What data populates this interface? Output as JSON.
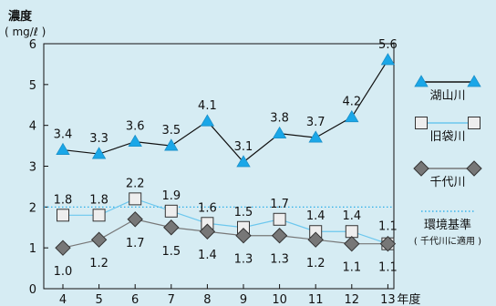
{
  "colors": {
    "background": "#d6ecf3",
    "axis": "#111111",
    "lake": "#1aa7e8",
    "lake_line": "#111111",
    "kyu": "#6cc7ee",
    "senda": "#777777",
    "standard": "#1aa7e8"
  },
  "chart_data": {
    "type": "line",
    "ylabel_line1": "濃度",
    "ylabel_line2": "( mg/ℓ )",
    "x_unit_label": "年度",
    "categories": [
      "4",
      "5",
      "6",
      "7",
      "8",
      "9",
      "10",
      "11",
      "12",
      "13"
    ],
    "ylim": [
      0,
      6
    ],
    "yticks": [
      "0",
      "1",
      "2",
      "3",
      "4",
      "5",
      "6"
    ],
    "grid": false,
    "series": [
      {
        "key": "lake",
        "name": "湖山川",
        "values": [
          3.4,
          3.3,
          3.6,
          3.5,
          4.1,
          3.1,
          3.8,
          3.7,
          4.2,
          5.6
        ],
        "labels": [
          "3.4",
          "3.3",
          "3.6",
          "3.5",
          "4.1",
          "3.1",
          "3.8",
          "3.7",
          "4.2",
          "5.6"
        ],
        "marker": "triangle-up"
      },
      {
        "key": "kyu",
        "name": "旧袋川",
        "values": [
          1.8,
          1.8,
          2.2,
          1.9,
          1.6,
          1.5,
          1.7,
          1.4,
          1.4,
          1.1
        ],
        "labels": [
          "1.8",
          "1.8",
          "2.2",
          "1.9",
          "1.6",
          "1.5",
          "1.7",
          "1.4",
          "1.4",
          "1.1"
        ],
        "marker": "square"
      },
      {
        "key": "senda",
        "name": "千代川",
        "values": [
          1.0,
          1.2,
          1.7,
          1.5,
          1.4,
          1.3,
          1.3,
          1.2,
          1.1,
          1.1
        ],
        "labels": [
          "1.0",
          "1.2",
          "1.7",
          "1.5",
          "1.4",
          "1.3",
          "1.3",
          "1.2",
          "1.1",
          "1.1"
        ],
        "marker": "diamond"
      }
    ],
    "reference_line": {
      "name": "環境基準",
      "note": "( 千代川に適用 )",
      "value": 2.0,
      "style": "dotted"
    },
    "legend_position": "right"
  }
}
